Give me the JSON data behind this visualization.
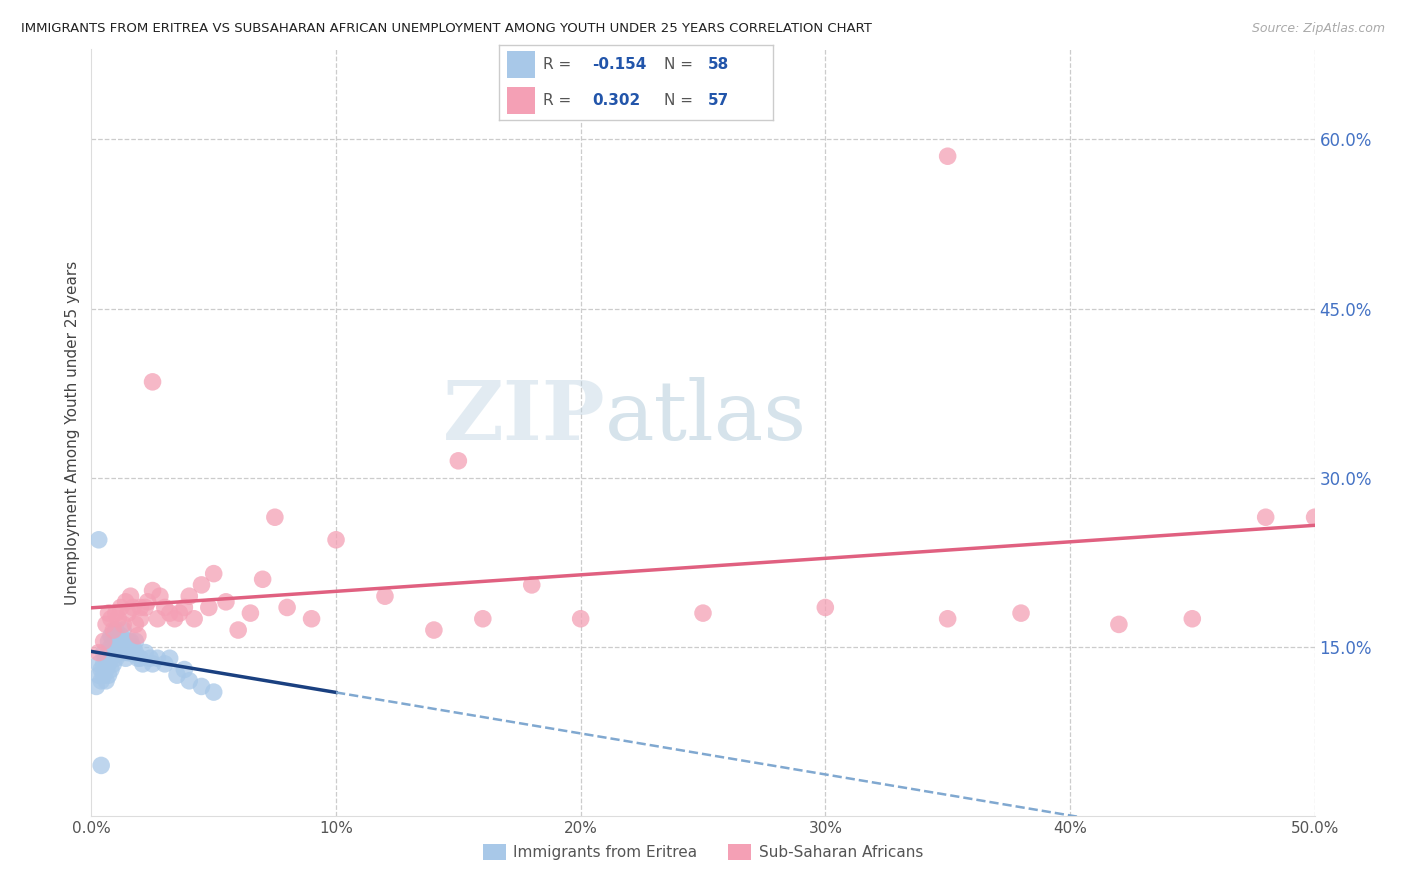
{
  "title": "IMMIGRANTS FROM ERITREA VS SUBSAHARAN AFRICAN UNEMPLOYMENT AMONG YOUTH UNDER 25 YEARS CORRELATION CHART",
  "source": "Source: ZipAtlas.com",
  "ylabel": "Unemployment Among Youth under 25 years",
  "xlabel_blue": "Immigrants from Eritrea",
  "xlabel_pink": "Sub-Saharan Africans",
  "r_blue": -0.154,
  "n_blue": 58,
  "r_pink": 0.302,
  "n_pink": 57,
  "xlim": [
    0.0,
    0.5
  ],
  "ylim": [
    0.0,
    0.68
  ],
  "right_yticks": [
    0.15,
    0.3,
    0.45,
    0.6
  ],
  "right_yticklabels": [
    "15.0%",
    "30.0%",
    "45.0%",
    "60.0%"
  ],
  "xticks": [
    0.0,
    0.1,
    0.2,
    0.3,
    0.4,
    0.5
  ],
  "xticklabels": [
    "0.0%",
    "10%",
    "20%",
    "30%",
    "40%",
    "50.0%"
  ],
  "color_blue": "#a8c8e8",
  "color_pink": "#f4a0b5",
  "trendline_blue_solid_color": "#1a4080",
  "trendline_blue_dashed_color": "#80a8d0",
  "trendline_pink_color": "#e06080",
  "background_color": "#ffffff",
  "grid_color": "#cccccc",
  "watermark_zip": "ZIP",
  "watermark_atlas": "atlas",
  "blue_points_x": [
    0.002,
    0.003,
    0.003,
    0.004,
    0.004,
    0.005,
    0.005,
    0.005,
    0.006,
    0.006,
    0.006,
    0.007,
    0.007,
    0.007,
    0.007,
    0.008,
    0.008,
    0.008,
    0.008,
    0.009,
    0.009,
    0.009,
    0.01,
    0.01,
    0.01,
    0.01,
    0.011,
    0.011,
    0.012,
    0.012,
    0.013,
    0.013,
    0.013,
    0.014,
    0.014,
    0.015,
    0.015,
    0.016,
    0.016,
    0.017,
    0.018,
    0.018,
    0.019,
    0.02,
    0.021,
    0.022,
    0.024,
    0.025,
    0.027,
    0.03,
    0.032,
    0.035,
    0.038,
    0.04,
    0.045,
    0.05,
    0.003,
    0.004
  ],
  "blue_points_y": [
    0.115,
    0.125,
    0.135,
    0.12,
    0.13,
    0.125,
    0.135,
    0.145,
    0.12,
    0.13,
    0.14,
    0.125,
    0.135,
    0.145,
    0.155,
    0.13,
    0.14,
    0.15,
    0.16,
    0.135,
    0.145,
    0.155,
    0.14,
    0.15,
    0.16,
    0.165,
    0.145,
    0.155,
    0.15,
    0.16,
    0.145,
    0.155,
    0.165,
    0.14,
    0.15,
    0.145,
    0.155,
    0.145,
    0.155,
    0.15,
    0.145,
    0.155,
    0.14,
    0.14,
    0.135,
    0.145,
    0.14,
    0.135,
    0.14,
    0.135,
    0.14,
    0.125,
    0.13,
    0.12,
    0.115,
    0.11,
    0.245,
    0.045
  ],
  "pink_points_x": [
    0.003,
    0.005,
    0.006,
    0.007,
    0.008,
    0.009,
    0.01,
    0.011,
    0.012,
    0.013,
    0.014,
    0.015,
    0.016,
    0.017,
    0.018,
    0.019,
    0.02,
    0.02,
    0.022,
    0.023,
    0.025,
    0.027,
    0.028,
    0.03,
    0.032,
    0.034,
    0.036,
    0.038,
    0.04,
    0.042,
    0.045,
    0.048,
    0.05,
    0.055,
    0.06,
    0.065,
    0.07,
    0.075,
    0.08,
    0.09,
    0.1,
    0.12,
    0.14,
    0.16,
    0.18,
    0.2,
    0.25,
    0.3,
    0.35,
    0.38,
    0.42,
    0.45,
    0.48,
    0.5,
    0.025,
    0.15,
    0.35
  ],
  "pink_points_y": [
    0.145,
    0.155,
    0.17,
    0.18,
    0.175,
    0.165,
    0.18,
    0.175,
    0.185,
    0.17,
    0.19,
    0.18,
    0.195,
    0.185,
    0.17,
    0.16,
    0.185,
    0.175,
    0.185,
    0.19,
    0.2,
    0.175,
    0.195,
    0.185,
    0.18,
    0.175,
    0.18,
    0.185,
    0.195,
    0.175,
    0.205,
    0.185,
    0.215,
    0.19,
    0.165,
    0.18,
    0.21,
    0.265,
    0.185,
    0.175,
    0.245,
    0.195,
    0.165,
    0.175,
    0.205,
    0.175,
    0.18,
    0.185,
    0.175,
    0.18,
    0.17,
    0.175,
    0.265,
    0.265,
    0.385,
    0.315,
    0.585
  ]
}
